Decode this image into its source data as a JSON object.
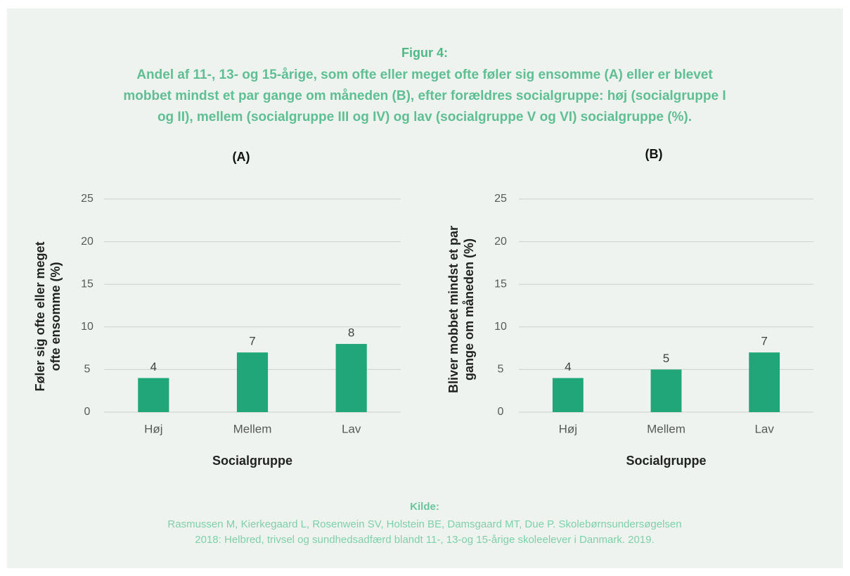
{
  "figure_label": "Figur 4:",
  "title_lines": [
    "Andel af 11-, 13- og 15-årige, som ofte eller meget ofte føler sig ensomme (A) eller er blevet",
    "mobbet mindst et par gange om måneden (B), efter forældres socialgruppe: høj (socialgruppe I",
    "og II), mellem (socialgruppe III og IV) og lav (socialgruppe V og VI) socialgruppe (%)."
  ],
  "source_label": "Kilde:",
  "source_lines": [
    "Rasmussen M, Kierkegaard L, Rosenwein SV, Holstein BE, Damsgaard MT, Due P. Skolebørnsundersøgelsen",
    "2018: Helbred, trivsel og sundhedsadfærd blandt 11-, 13-og 15-årige skoleelever i Danmark. 2019."
  ],
  "chart_data": [
    {
      "type": "bar",
      "title": "(A)",
      "x_label": "Socialgruppe",
      "y_label": [
        "Føler sig ofte eller meget",
        "ofte ensomme (%)"
      ],
      "categories": [
        "Høj",
        "Mellem",
        "Lav"
      ],
      "values": [
        4,
        7,
        8
      ],
      "color": "#21a67a",
      "ylim": [
        0,
        25
      ],
      "yticks": [
        0,
        5,
        10,
        15,
        20,
        25
      ],
      "grid": true
    },
    {
      "type": "bar",
      "title": "(B)",
      "x_label": "Socialgruppe",
      "y_label": [
        "Bliver mobbet mindst et par",
        "gange om måneden (%)"
      ],
      "categories": [
        "Høj",
        "Mellem",
        "Lav"
      ],
      "values": [
        4,
        5,
        7
      ],
      "color": "#21a67a",
      "ylim": [
        0,
        25
      ],
      "yticks": [
        0,
        5,
        10,
        15,
        20,
        25
      ],
      "grid": true
    }
  ]
}
